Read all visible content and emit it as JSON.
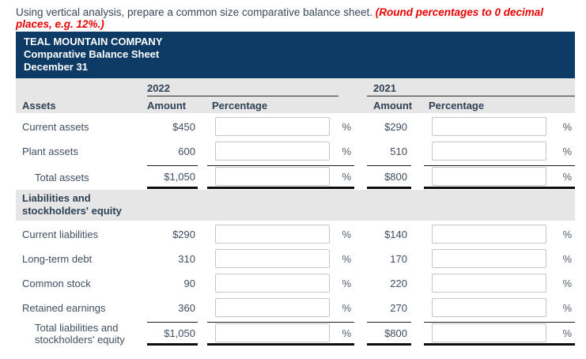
{
  "instruction": {
    "text": "Using vertical analysis, prepare a common size comparative balance sheet. ",
    "note": "(Round percentages to 0 decimal places, e.g. 12%.)"
  },
  "header": {
    "company": "TEAL MOUNTAIN COMPANY",
    "title": "Comparative Balance Sheet",
    "date": "December 31"
  },
  "columns": {
    "year_left": "2022",
    "year_right": "2021",
    "amount_label": "Amount",
    "percentage_label": "Percentage",
    "percent_sign": "%"
  },
  "sections": [
    {
      "label": "Assets",
      "rows": [
        {
          "label": "Current assets",
          "amount_2022": "$450",
          "pct_2022": "",
          "amount_2021": "$290",
          "pct_2021": ""
        },
        {
          "label": "Plant assets",
          "amount_2022": "600",
          "pct_2022": "",
          "amount_2021": "510",
          "pct_2021": ""
        },
        {
          "label": "Total assets",
          "amount_2022": "$1,050",
          "pct_2022": "",
          "amount_2021": "$800",
          "pct_2021": ""
        }
      ]
    },
    {
      "label": "Liabilities and stockholders' equity",
      "rows": [
        {
          "label": "Current liabilities",
          "amount_2022": "$290",
          "pct_2022": "",
          "amount_2021": "$140",
          "pct_2021": ""
        },
        {
          "label": "Long-term debt",
          "amount_2022": "310",
          "pct_2022": "",
          "amount_2021": "170",
          "pct_2021": ""
        },
        {
          "label": "Common stock",
          "amount_2022": "90",
          "pct_2022": "",
          "amount_2021": "220",
          "pct_2021": ""
        },
        {
          "label": "Retained earnings",
          "amount_2022": "360",
          "pct_2022": "",
          "amount_2021": "270",
          "pct_2021": ""
        },
        {
          "label": "Total liabilities and stockholders' equity",
          "amount_2022": "$1,050",
          "pct_2022": "",
          "amount_2021": "$800",
          "pct_2021": ""
        }
      ]
    }
  ],
  "colors": {
    "header_navy": "#0e3a66",
    "band_gray": "#e6e6e6",
    "note_red": "#eb0000",
    "text": "#3f4e61"
  }
}
